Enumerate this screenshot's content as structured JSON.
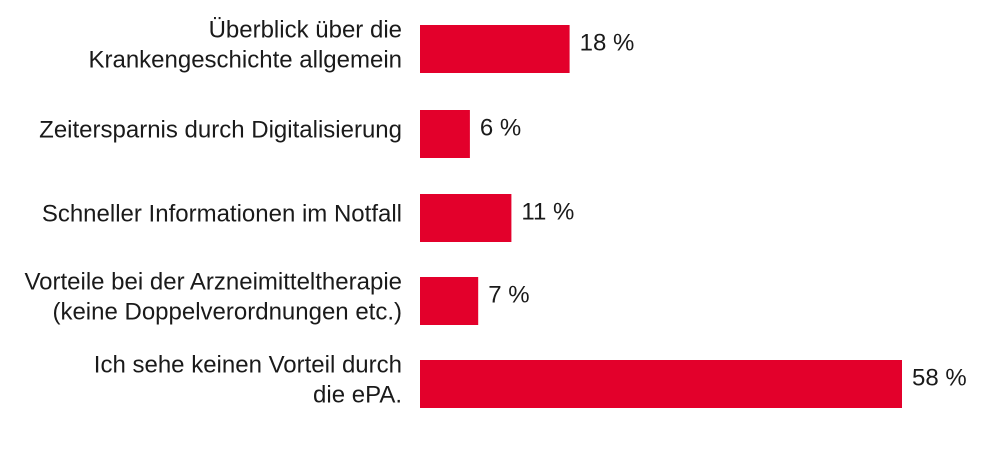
{
  "colors": {
    "bar": "#e3002b",
    "text": "#1a1a1a",
    "background": "#ffffff"
  },
  "chart_data": {
    "type": "bar",
    "orientation": "horizontal",
    "categories": [
      [
        "Überblick über die",
        "Krankengeschichte allgemein"
      ],
      [
        "Zeitersparnis durch Digitalisierung"
      ],
      [
        "Schneller Informationen im Notfall"
      ],
      [
        "Vorteile bei der Arzneimitteltherapie",
        "(keine Doppelverordnungen etc.)"
      ],
      [
        "Ich sehe keinen Vorteil durch",
        "die ePA."
      ]
    ],
    "values": [
      18,
      6,
      11,
      7,
      58
    ],
    "value_labels": [
      "18 %",
      "6 %",
      "11 %",
      "7 %",
      "58 %"
    ],
    "unit": "%",
    "xlim": [
      0,
      58
    ],
    "grid": false,
    "legend": "none"
  }
}
